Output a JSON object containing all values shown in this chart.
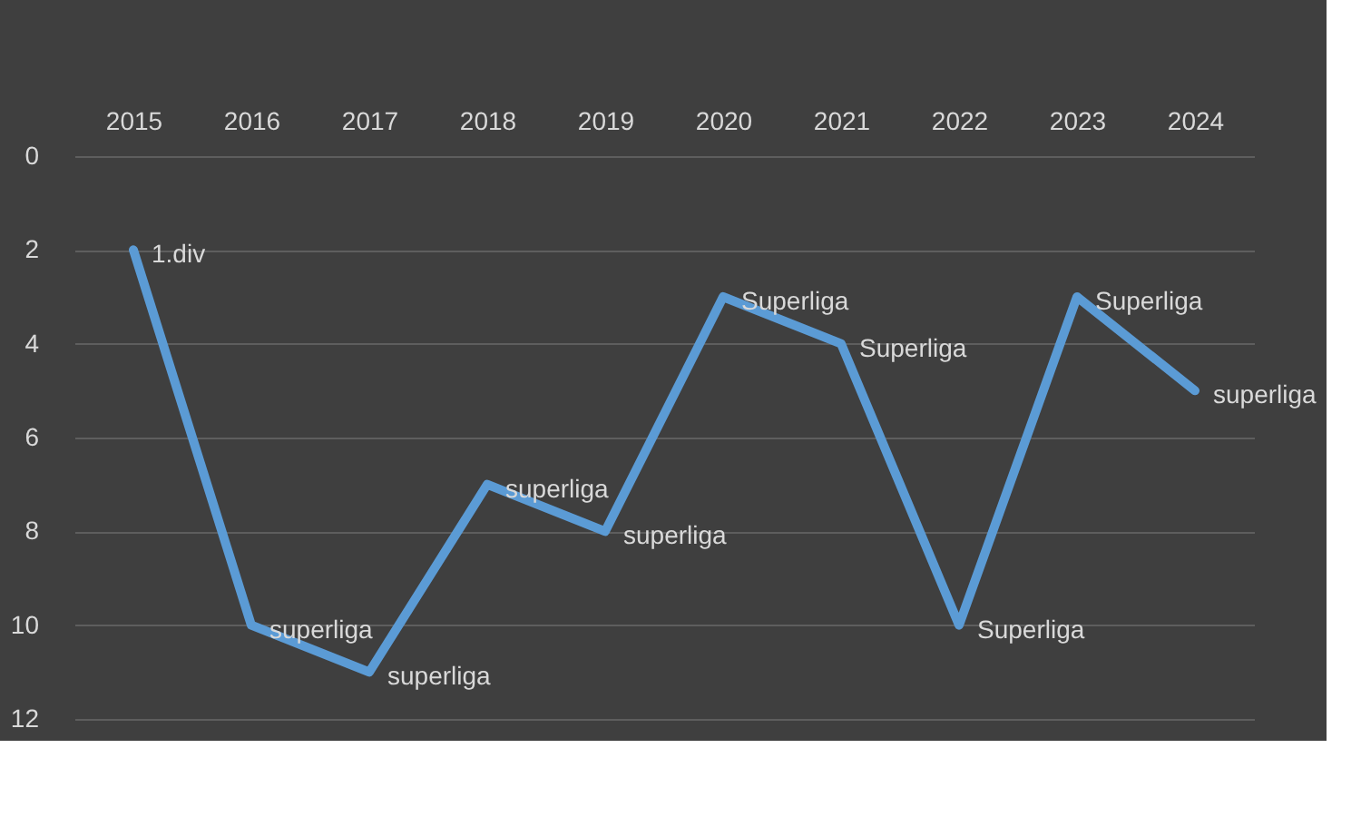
{
  "chart_data": {
    "type": "line",
    "categories": [
      "2015",
      "2016",
      "2017",
      "2018",
      "2019",
      "2020",
      "2021",
      "2022",
      "2023",
      "2024"
    ],
    "series": [
      {
        "color": "#5b9bd5",
        "values": [
          2,
          10,
          11,
          7,
          8,
          3,
          4,
          10,
          3,
          5
        ]
      }
    ],
    "annotations": [
      {
        "text": "1.div",
        "x": "2015",
        "y": 2
      },
      {
        "text": "superliga",
        "x": "2016",
        "y": 10
      },
      {
        "text": "superliga",
        "x": "2017",
        "y": 11
      },
      {
        "text": "superliga",
        "x": "2018",
        "y": 7
      },
      {
        "text": "superliga",
        "x": "2019",
        "y": 8
      },
      {
        "text": "Superliga",
        "x": "2020",
        "y": 3
      },
      {
        "text": "Superliga",
        "x": "2021",
        "y": 4
      },
      {
        "text": "Superliga",
        "x": "2022",
        "y": 10
      },
      {
        "text": "Superliga",
        "x": "2023",
        "y": 3
      },
      {
        "text": "superliga",
        "x": "2024",
        "y": 5
      }
    ],
    "ylim": [
      12,
      0
    ],
    "yticks": [
      0,
      2,
      4,
      6,
      8,
      10,
      12
    ],
    "grid": "y",
    "line_style": "solid"
  }
}
